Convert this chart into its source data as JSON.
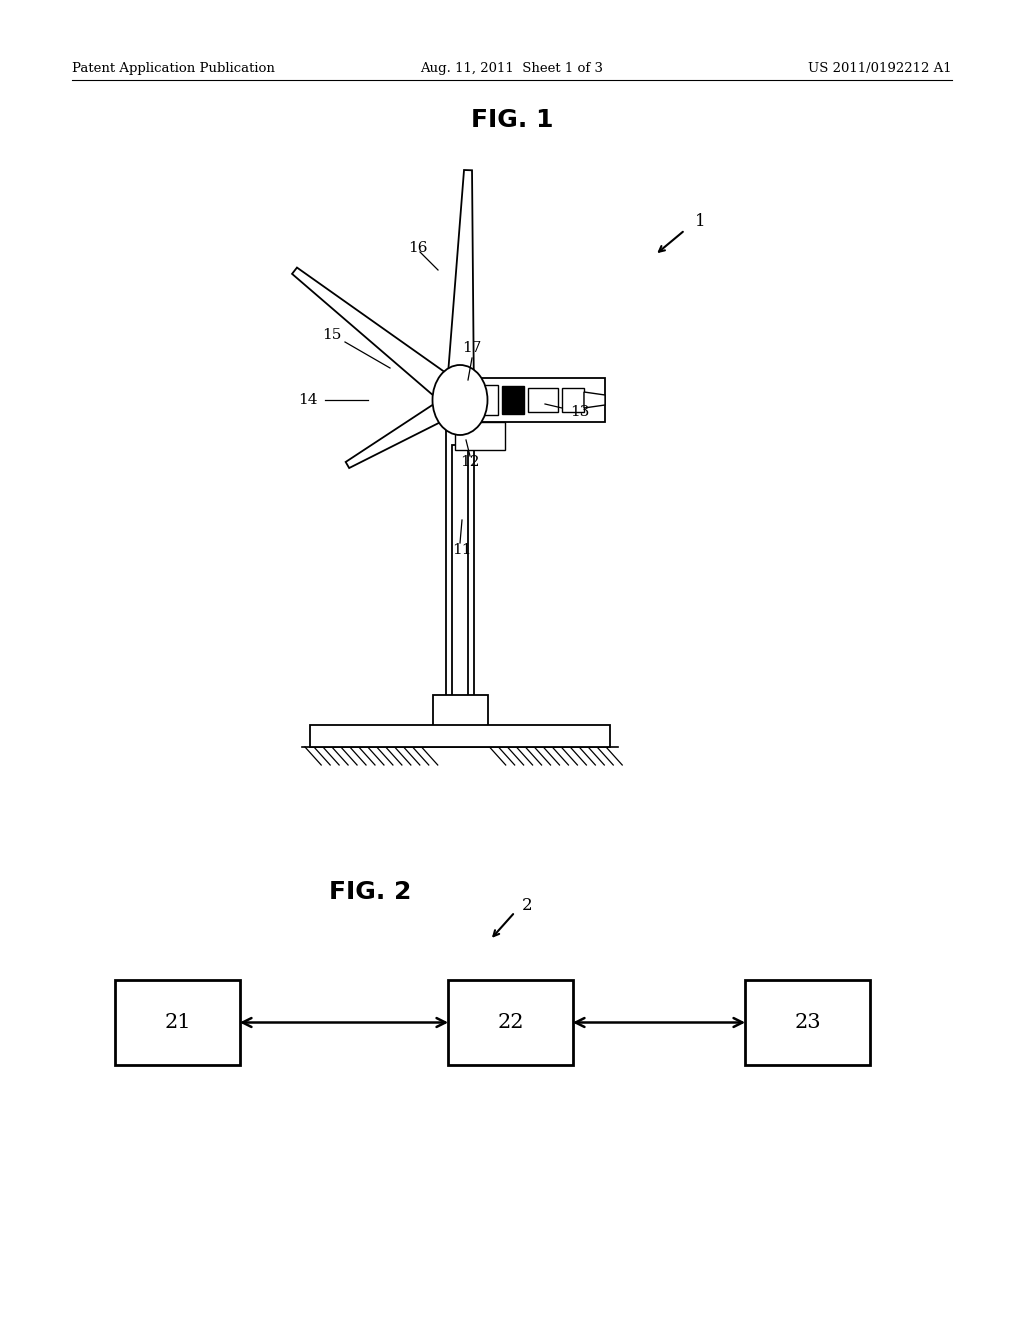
{
  "bg_color": "#ffffff",
  "header_left": "Patent Application Publication",
  "header_center": "Aug. 11, 2011  Sheet 1 of 3",
  "header_right": "US 2011/0192212 A1",
  "fig1_title": "FIG. 1",
  "fig2_title": "FIG. 2",
  "fig1_ref": "1",
  "fig2_ref": "2"
}
